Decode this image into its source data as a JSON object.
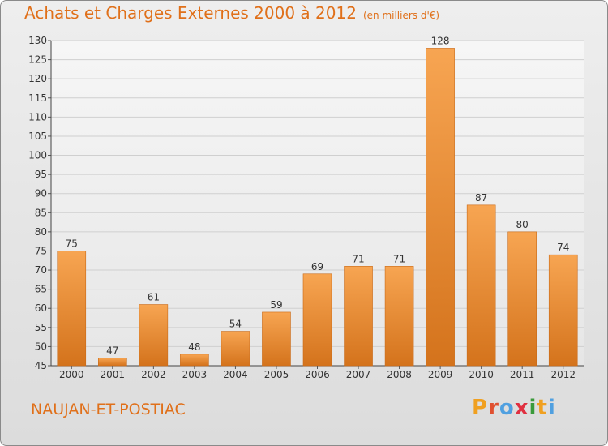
{
  "chart_data": {
    "type": "bar",
    "title": "Achats et Charges Externes 2000 à 2012",
    "subtitle": "(en milliers d'€)",
    "categories": [
      "2000",
      "2001",
      "2002",
      "2003",
      "2004",
      "2005",
      "2006",
      "2007",
      "2008",
      "2009",
      "2010",
      "2011",
      "2012"
    ],
    "values": [
      75,
      47,
      61,
      48,
      54,
      59,
      69,
      71,
      71,
      128,
      87,
      80,
      74
    ],
    "ylim": [
      45,
      130
    ],
    "yticks": [
      45,
      50,
      55,
      60,
      65,
      70,
      75,
      80,
      85,
      90,
      95,
      100,
      105,
      110,
      115,
      120,
      125,
      130
    ],
    "grid": true,
    "xlabel": "",
    "ylabel": "",
    "bar_color": "#f0902e",
    "accent_color": "#e0701a"
  },
  "commune": "NAUJAN-ET-POSTIAC",
  "logo": {
    "letters": [
      "P",
      "r",
      "o",
      "x",
      "i",
      "t",
      "i"
    ],
    "colors": [
      "#f0a020",
      "#e05030",
      "#50a0e0",
      "#e03040",
      "#3a9a3a",
      "#f0a020",
      "#50a0e0"
    ]
  }
}
